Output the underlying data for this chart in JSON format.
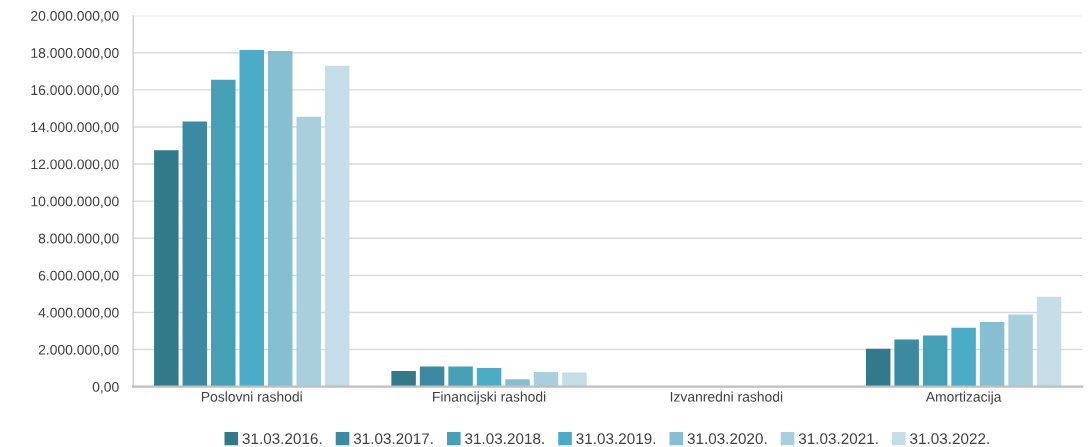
{
  "chart_data": {
    "type": "bar",
    "categories": [
      "Poslovni rashodi",
      "Financijski rashodi",
      "Izvanredni rashodi",
      "Amortizacija"
    ],
    "series": [
      {
        "name": "31.03.2016.",
        "color": "#327a8a",
        "values": [
          12750000,
          850000,
          0,
          2040000
        ]
      },
      {
        "name": "31.03.2017.",
        "color": "#3b8aa2",
        "values": [
          14300000,
          1080000,
          0,
          2540000
        ]
      },
      {
        "name": "31.03.2018.",
        "color": "#459fb5",
        "values": [
          16550000,
          1080000,
          0,
          2760000
        ]
      },
      {
        "name": "31.03.2019.",
        "color": "#4aacc6",
        "values": [
          18150000,
          1000000,
          0,
          3170000
        ]
      },
      {
        "name": "31.03.2020.",
        "color": "#86bfd1",
        "values": [
          18100000,
          400000,
          0,
          3480000
        ]
      },
      {
        "name": "31.03.2021.",
        "color": "#a9cfdd",
        "values": [
          14550000,
          790000,
          0,
          3890000
        ]
      },
      {
        "name": "31.03.2022.",
        "color": "#c4dde6",
        "values": [
          17300000,
          760000,
          0,
          4850000
        ]
      }
    ],
    "ylim": [
      0,
      20000000
    ],
    "yticks": [
      {
        "value": 0,
        "label": "0,00"
      },
      {
        "value": 2000000,
        "label": "2.000.000,00"
      },
      {
        "value": 4000000,
        "label": "4.000.000,00"
      },
      {
        "value": 6000000,
        "label": "6.000.000,00"
      },
      {
        "value": 8000000,
        "label": "8.000.000,00"
      },
      {
        "value": 10000000,
        "label": "10.000.000,00"
      },
      {
        "value": 12000000,
        "label": "12.000.000,00"
      },
      {
        "value": 14000000,
        "label": "14.000.000,00"
      },
      {
        "value": 16000000,
        "label": "16.000.000,00"
      },
      {
        "value": 18000000,
        "label": "18.000.000,00"
      },
      {
        "value": 20000000,
        "label": "20.000.000,00"
      }
    ],
    "grid": "y",
    "legend": "bottom"
  }
}
